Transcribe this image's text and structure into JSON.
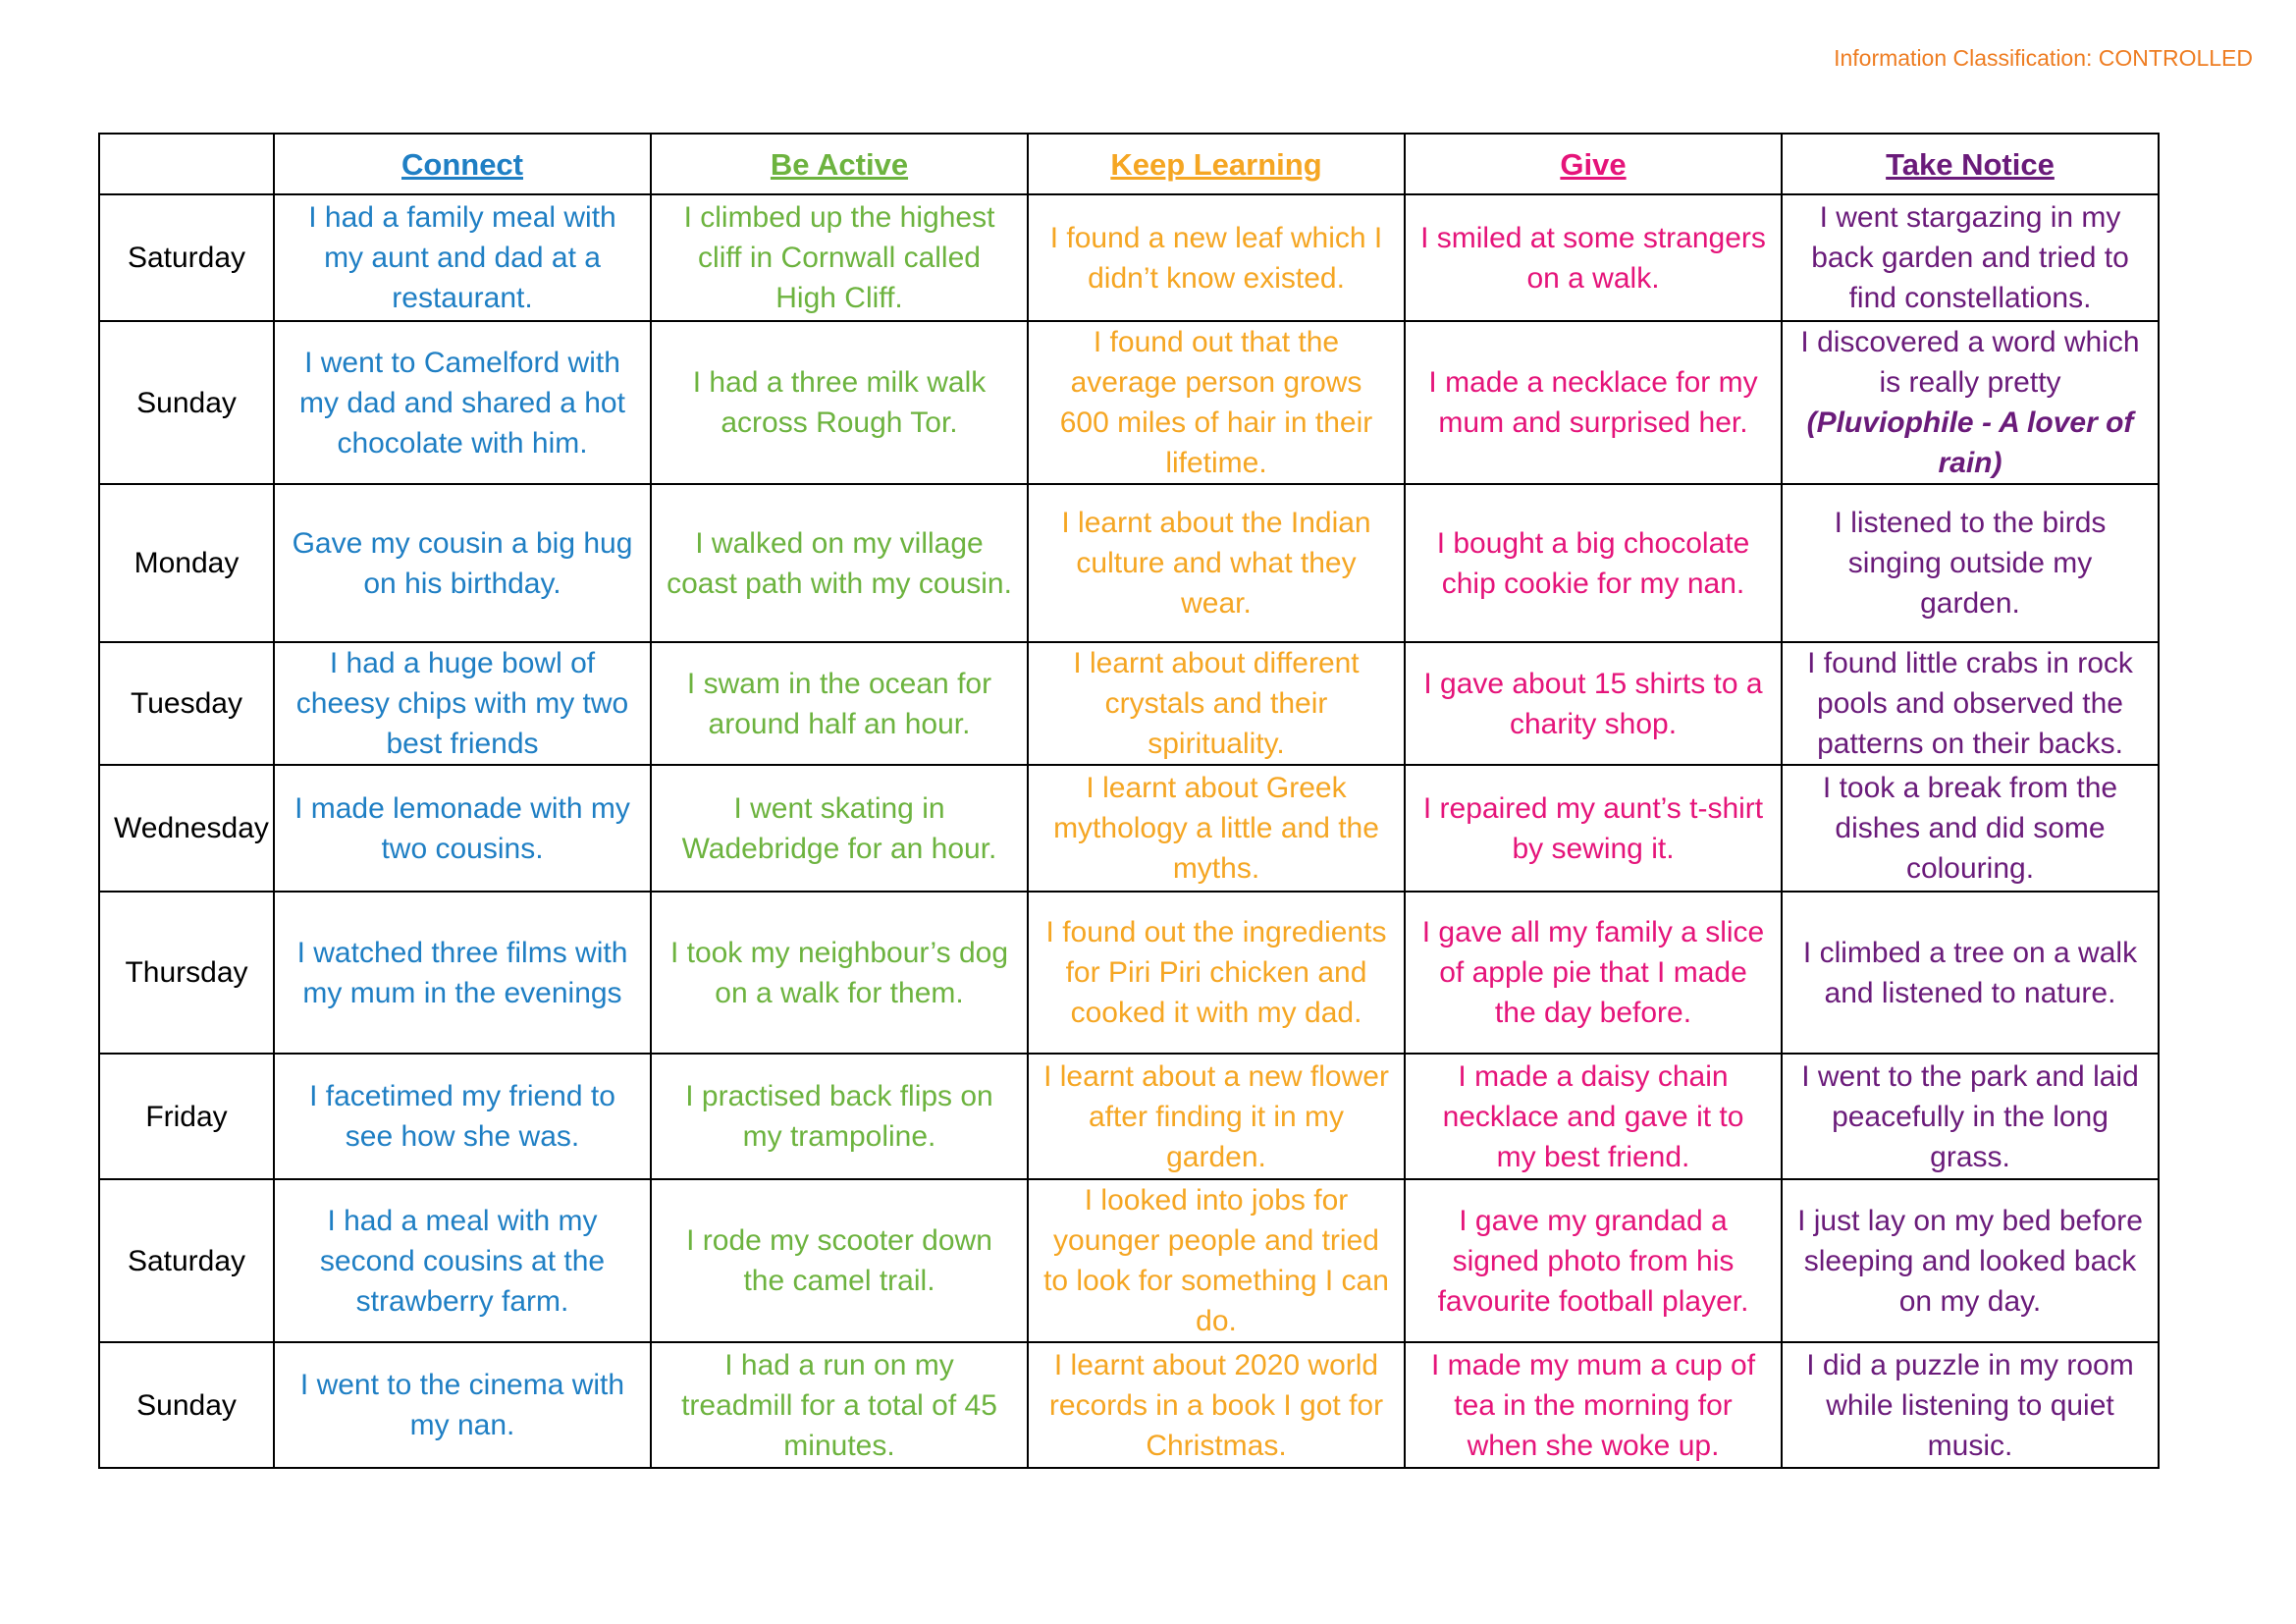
{
  "classification": "Information Classification: CONTROLLED",
  "colors": {
    "connect": "#1f7fc4",
    "be_active": "#6db33f",
    "keep_learning": "#f5a623",
    "give": "#e5147a",
    "take_notice": "#6a1b7a"
  },
  "headers": [
    "",
    "Connect",
    "Be Active",
    "Keep Learning",
    "Give",
    "Take Notice"
  ],
  "rows": [
    {
      "day": "Saturday",
      "connect": "I had a family meal with my aunt and dad at a restaurant.",
      "be_active": "I climbed up the highest cliff in Cornwall called High Cliff.",
      "keep_learning": "I found a new leaf which I didn’t know existed.",
      "give": "I smiled at some strangers on a walk.",
      "take_notice": "I went stargazing in my back garden and tried to find constellations."
    },
    {
      "day": "Sunday",
      "connect": "I went to Camelford with my dad and shared a hot chocolate with him.",
      "be_active": "I had a three milk walk across Rough Tor.",
      "keep_learning": "I found out that the average person grows 600 miles of hair in their lifetime.",
      "give": "I made a necklace for my mum and surprised her.",
      "take_notice": "I discovered a word which is really pretty",
      "take_notice_emphasis": "(Pluviophile - A lover of rain)"
    },
    {
      "day": "Monday",
      "connect": "Gave my cousin a big hug on his birthday.",
      "be_active": "I walked on my village coast path with my cousin.",
      "keep_learning": "I learnt about the Indian culture and what they wear.",
      "give": "I bought a big chocolate chip cookie for my nan.",
      "take_notice": "I listened to the birds singing outside my garden."
    },
    {
      "day": "Tuesday",
      "connect": "I had a huge bowl of cheesy chips with my two best friends",
      "be_active": "I swam in the ocean for around half an hour.",
      "keep_learning": "I learnt about different crystals and their spirituality.",
      "give": "I gave about 15 shirts to a charity shop.",
      "take_notice": "I found little crabs in rock pools and observed the patterns on their backs."
    },
    {
      "day": "Wednesday",
      "connect": "I made lemonade with my two cousins.",
      "be_active": "I went skating in Wadebridge for an hour.",
      "keep_learning": "I learnt about Greek mythology a little and the myths.",
      "give": "I repaired my aunt’s t-shirt by sewing it.",
      "take_notice": "I took a break from the dishes and did some colouring."
    },
    {
      "day": "Thursday",
      "connect": "I watched three films with my mum in the evenings",
      "be_active": "I took my neighbour’s dog on a walk for them.",
      "keep_learning": "I found out the ingredients for Piri Piri chicken and cooked it with my dad.",
      "give": "I gave all my family a slice of apple pie that I made the day before.",
      "take_notice": "I climbed a tree on a walk and listened to nature."
    },
    {
      "day": "Friday",
      "connect": "I facetimed my friend to see how she was.",
      "be_active": "I practised back flips on my trampoline.",
      "keep_learning": "I learnt about a new flower after finding it in my garden.",
      "give": "I made a daisy chain necklace and gave it to my best friend.",
      "take_notice": "I went to the park and laid peacefully in the long grass."
    },
    {
      "day": "Saturday",
      "connect": "I had a meal with my second cousins at the strawberry farm.",
      "be_active": "I rode my scooter down the camel trail.",
      "keep_learning": "I looked into jobs for younger people and tried to look for something I can do.",
      "give": "I gave my grandad a signed photo from his favourite football player.",
      "take_notice": "I just lay on my bed before sleeping and looked back on my day."
    },
    {
      "day": "Sunday",
      "connect": "I went to the cinema with my nan.",
      "be_active": "I had a run on my treadmill for a total of 45 minutes.",
      "keep_learning": "I learnt about 2020 world records in a book I got for Christmas.",
      "give": "I made my mum a cup of tea in the morning for when she woke up.",
      "take_notice": "I did a puzzle in my room while listening to quiet music."
    }
  ]
}
